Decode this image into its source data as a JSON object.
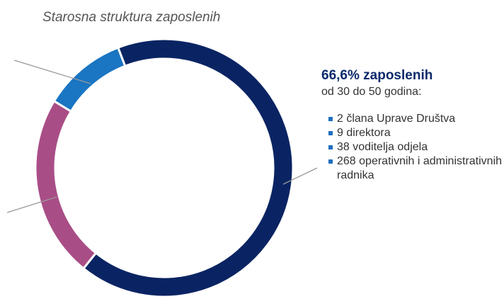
{
  "chart_data": {
    "type": "pie",
    "donut": true,
    "title": "Starosna struktura zaposlenih",
    "values": [
      66.6,
      22.9,
      10.5
    ],
    "value_labels": [
      "66,6%",
      null,
      null
    ],
    "colors": [
      "#0a2463",
      "#a94d86",
      "#1a75c2"
    ],
    "annotation": {
      "headline": "zaposlenih",
      "subtitle": "od 30 do 50 godina:",
      "items": [
        "2 člana Uprave Društva",
        "9 direktora",
        "38 voditelja odjela",
        "268 operativnih i administrativnih radnika"
      ]
    }
  }
}
